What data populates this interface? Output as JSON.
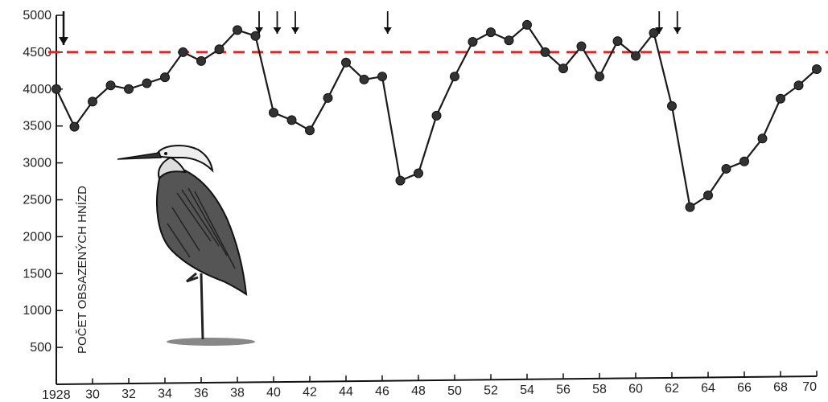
{
  "chart_data": {
    "type": "line",
    "title": "",
    "xlabel": "",
    "ylabel": "POČET OBSAZENÝCH HNÍZD",
    "xlim": [
      1928,
      1970
    ],
    "ylim": [
      0,
      5000
    ],
    "x_ticks": [
      1928,
      1930,
      1932,
      1934,
      1936,
      1938,
      1940,
      1942,
      1944,
      1946,
      1948,
      1950,
      1952,
      1954,
      1956,
      1958,
      1960,
      1962,
      1964,
      1966,
      1968,
      1970
    ],
    "x_tick_labels": [
      "1928",
      "30",
      "32",
      "34",
      "36",
      "38",
      "40",
      "42",
      "44",
      "46",
      "48",
      "50",
      "52",
      "54",
      "56",
      "58",
      "60",
      "62",
      "64",
      "66",
      "68",
      "70"
    ],
    "y_ticks": [
      500,
      1000,
      1500,
      2000,
      2500,
      3000,
      3500,
      4000,
      4500,
      5000
    ],
    "y_tick_labels": [
      "500",
      "1000",
      "1500",
      "2000",
      "2500",
      "3000",
      "3500",
      "4000",
      "4500",
      "5000"
    ],
    "grid": false,
    "series": [
      {
        "x": [
          1928,
          1929,
          1930,
          1931,
          1932,
          1933,
          1934,
          1935,
          1936,
          1937,
          1938,
          1939,
          1940,
          1941,
          1942,
          1943,
          1944,
          1945,
          1946,
          1947,
          1948,
          1949,
          1950,
          1951,
          1952,
          1953,
          1954,
          1955,
          1956,
          1957,
          1958,
          1959,
          1960,
          1961,
          1962,
          1963,
          1964,
          1965,
          1966,
          1967,
          1968,
          1969,
          1970
        ],
        "values": [
          4000,
          3490,
          3830,
          4050,
          4000,
          4080,
          4160,
          4500,
          4380,
          4540,
          4800,
          4720,
          3680,
          3580,
          3440,
          3880,
          4360,
          4130,
          4170,
          2760,
          2860,
          3640,
          4170,
          4640,
          4770,
          4660,
          4870,
          4500,
          4280,
          4580,
          4170,
          4650,
          4450,
          4760,
          3770,
          2400,
          2560,
          2920,
          3020,
          3330,
          3870,
          4050,
          4270
        ]
      }
    ],
    "reference_line": {
      "y": 4500,
      "color": "#e82020",
      "style": "dashed"
    },
    "arrow_years": [
      1928.4,
      1939.2,
      1940.2,
      1941.2,
      1946.3,
      1961.3,
      1962.3
    ],
    "illustration": "heron-illustration",
    "colors": {
      "line": "#1a1a1a",
      "marker": "#333333",
      "axis": "#111111",
      "reference": "#e82020"
    }
  }
}
